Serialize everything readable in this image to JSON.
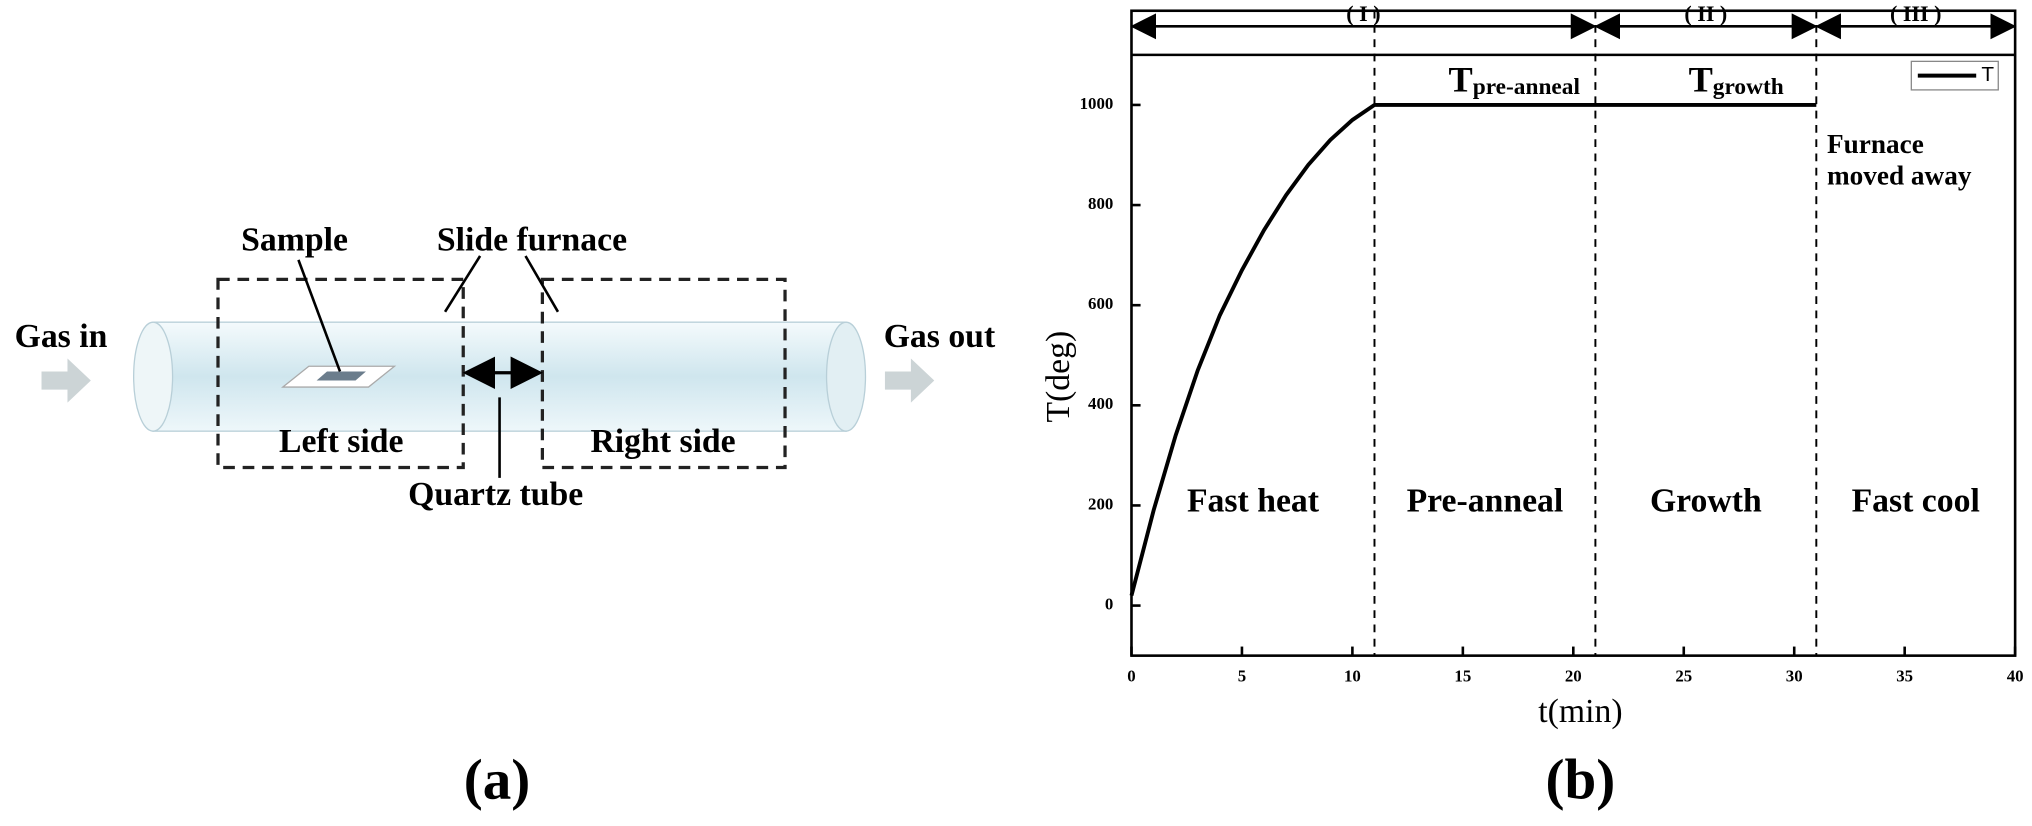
{
  "diagram": {
    "sample": "Sample",
    "slide_furnace": "Slide furnace",
    "gas_in": "Gas in",
    "gas_out": "Gas out",
    "left_side": "Left side",
    "right_side": "Right side",
    "quartz_tube": "Quartz tube",
    "panel": "(a)"
  },
  "chart_data": {
    "type": "line",
    "panel": "(b)",
    "xlabel": "t(min)",
    "ylabel": "T(deg)",
    "x": [
      0,
      1,
      2,
      3,
      4,
      5,
      6,
      7,
      8,
      9,
      10,
      11,
      21,
      31
    ],
    "series": [
      {
        "name": "T",
        "color": "#000000",
        "values": [
          20,
          190,
          340,
          470,
          580,
          670,
          750,
          820,
          880,
          930,
          970,
          1000,
          1000,
          1000
        ]
      }
    ],
    "xlim": [
      0,
      40
    ],
    "ylim": [
      -100,
      1100
    ],
    "xticks": [
      0,
      5,
      10,
      15,
      20,
      25,
      30,
      35,
      40
    ],
    "yticks": [
      0,
      200,
      400,
      600,
      800,
      1000
    ],
    "vlines": [
      11,
      21,
      31
    ],
    "phases": [
      {
        "label": "( I )",
        "start": 0,
        "end": 21
      },
      {
        "label": "( II )",
        "start": 21,
        "end": 31
      },
      {
        "label": "( III )",
        "start": 31,
        "end": 40
      }
    ],
    "regions": [
      {
        "label": "Fast heat",
        "start": 0,
        "end": 11
      },
      {
        "label": "Pre-anneal",
        "start": 11,
        "end": 21
      },
      {
        "label": "Growth",
        "start": 21,
        "end": 31
      },
      {
        "label": "Fast cool",
        "start": 31,
        "end": 40
      }
    ],
    "annotations": [
      {
        "text": "T",
        "sub": "pre-anneal"
      },
      {
        "text": "T",
        "sub": "growth"
      },
      {
        "lines": [
          "Furnace",
          "moved away"
        ]
      }
    ],
    "legend": "upper right"
  }
}
